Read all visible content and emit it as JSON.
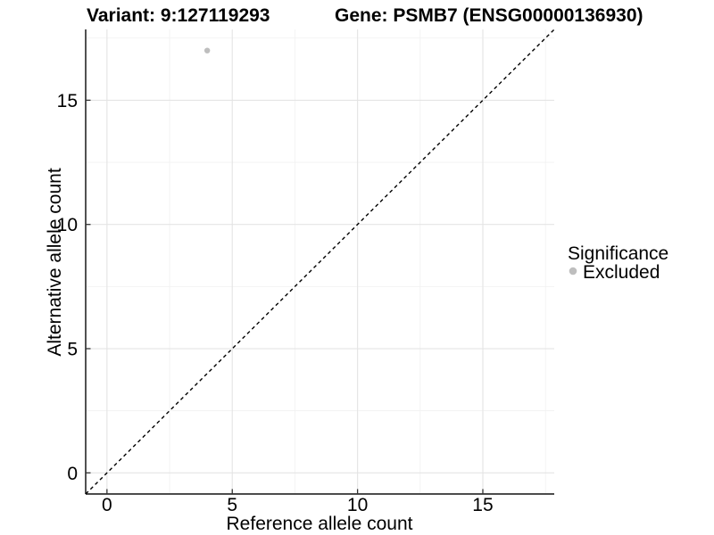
{
  "chart_data": {
    "type": "scatter",
    "title_left": "Variant: 9:127119293",
    "title_right": "Gene: PSMB7 (ENSG00000136930)",
    "xlabel": "Reference allele count",
    "ylabel": "Alternative allele count",
    "x_ticks": [
      0,
      5,
      10,
      15
    ],
    "y_ticks": [
      0,
      5,
      10,
      15
    ],
    "xlim": [
      -0.85,
      17.85
    ],
    "ylim": [
      -0.85,
      17.85
    ],
    "grid": {
      "major": [
        0,
        5,
        10,
        15
      ],
      "minor": [
        2.5,
        7.5,
        12.5,
        17.5
      ],
      "major_color": "#e4e4e4",
      "minor_color": "#f1f1f1"
    },
    "reference_line": {
      "type": "identity",
      "slope": 1,
      "intercept": 0,
      "style": "dashed",
      "color": "#000000"
    },
    "points": [
      {
        "x": 4,
        "y": 17,
        "series": "Excluded",
        "color": "#bebebe"
      }
    ],
    "point_color": "#bebebe",
    "legend": {
      "title": "Significance",
      "position": "right",
      "entries": [
        {
          "label": "Excluded",
          "color": "#bebebe",
          "marker": "circle"
        }
      ]
    },
    "background": "#ffffff",
    "axis_color": "#333333"
  }
}
